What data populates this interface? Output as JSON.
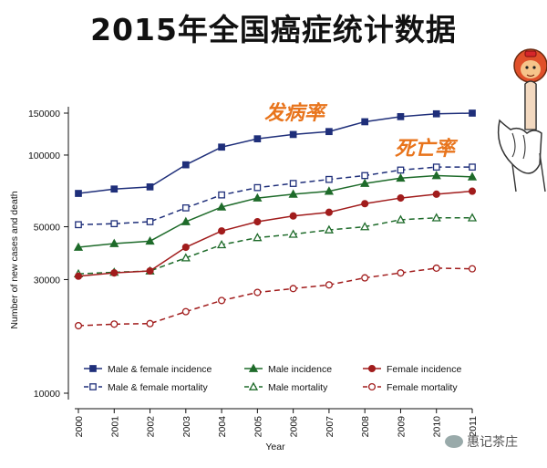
{
  "page_title": "2015年全国癌症统计数据",
  "annotations": {
    "incidence": "发病率",
    "mortality": "死亡率"
  },
  "watermark": "惠记茶庄",
  "chart_data": {
    "type": "line",
    "xlabel": "Year",
    "ylabel": "Number of new cases and death",
    "yscale": "log",
    "ylim": [
      10000,
      160000
    ],
    "yticks": [
      10000,
      30000,
      50000,
      100000,
      150000
    ],
    "ytick_labels": [
      "10000",
      "30000",
      "50000",
      "100000",
      "150000"
    ],
    "x": [
      "2000",
      "2001",
      "2002",
      "2003",
      "2004",
      "2005",
      "2006",
      "2007",
      "2008",
      "2009",
      "2010",
      "2011"
    ],
    "grid": false,
    "legend_position": "bottom-inside",
    "series": [
      {
        "name": "Male & female incidence",
        "color": "#1f2f7a",
        "dash": false,
        "marker": "square",
        "filled": true,
        "values": [
          69000,
          72000,
          73500,
          91000,
          108000,
          117000,
          122000,
          125500,
          138000,
          145000,
          149000,
          150000
        ]
      },
      {
        "name": "Male & female mortality",
        "color": "#1f2f7a",
        "dash": true,
        "marker": "square",
        "filled": false,
        "values": [
          51000,
          51500,
          52500,
          60000,
          68000,
          73000,
          76000,
          79000,
          82000,
          86500,
          89000,
          89000
        ]
      },
      {
        "name": "Male incidence",
        "color": "#1e6b2a",
        "dash": false,
        "marker": "triangle",
        "filled": true,
        "values": [
          41000,
          42500,
          43500,
          52500,
          60500,
          66000,
          68500,
          70500,
          76000,
          80000,
          82000,
          81000
        ]
      },
      {
        "name": "Male mortality",
        "color": "#1e6b2a",
        "dash": true,
        "marker": "triangle",
        "filled": false,
        "values": [
          31700,
          32200,
          32600,
          37000,
          42000,
          45000,
          46500,
          48500,
          50000,
          53500,
          54500,
          54500
        ]
      },
      {
        "name": "Female incidence",
        "color": "#a11c1c",
        "dash": false,
        "marker": "circle",
        "filled": true,
        "values": [
          31000,
          32000,
          32600,
          41000,
          48000,
          52500,
          55500,
          57500,
          62500,
          66000,
          68500,
          70500
        ]
      },
      {
        "name": "Female mortality",
        "color": "#a11c1c",
        "dash": true,
        "marker": "circle",
        "filled": false,
        "values": [
          19200,
          19500,
          19600,
          22000,
          24500,
          26500,
          27500,
          28500,
          30500,
          32000,
          33500,
          33300
        ]
      }
    ]
  }
}
